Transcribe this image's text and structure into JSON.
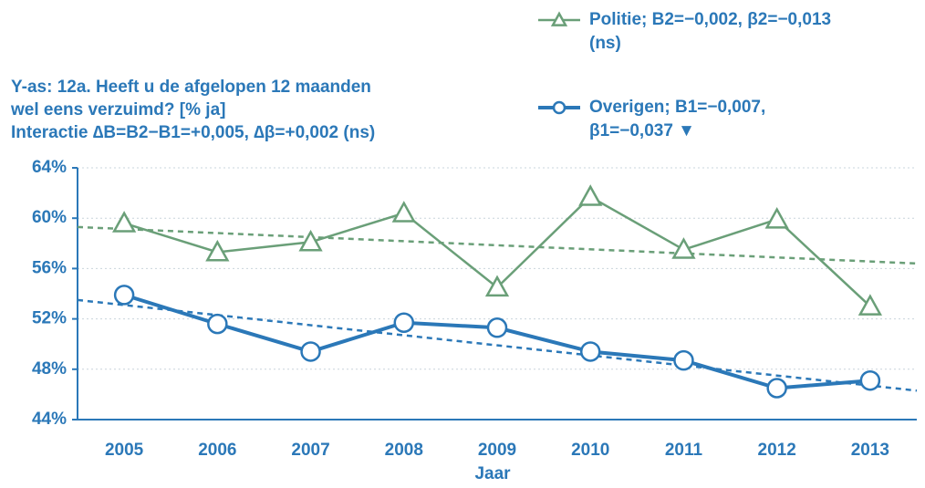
{
  "chart_data": {
    "type": "line",
    "title_lines": [
      "Y-as: 12a. Heeft u de afgelopen 12 maanden",
      "wel eens verzuimd? [% ja]",
      "Interactie ∆B=B2−B1=+0,005, ∆β=+0,002 (ns)"
    ],
    "x_label": "Jaar",
    "categories": [
      "2005",
      "2006",
      "2007",
      "2008",
      "2009",
      "2010",
      "2011",
      "2012",
      "2013"
    ],
    "series": [
      {
        "name": "Politie; B2=−0,002, β2=−0,013",
        "legend_note": "(ns)",
        "color": "#6a9f78",
        "marker": "triangle",
        "values": [
          59.6,
          57.3,
          58.1,
          60.4,
          54.5,
          61.7,
          57.5,
          59.9,
          53.0
        ],
        "trend": [
          59.3,
          56.4
        ]
      },
      {
        "name": "Overigen; B1=−0,007,",
        "legend_note": "β1=−0,037 ▼",
        "color": "#2b78b8",
        "marker": "circle",
        "values": [
          53.9,
          51.6,
          49.4,
          51.7,
          51.3,
          49.4,
          48.7,
          46.5,
          47.1
        ],
        "trend": [
          53.5,
          46.3
        ]
      }
    ],
    "ylim": [
      44,
      64
    ],
    "yticks": [
      {
        "value": 44,
        "label": "44%"
      },
      {
        "value": 48,
        "label": "48%"
      },
      {
        "value": 52,
        "label": "52%"
      },
      {
        "value": 56,
        "label": "56%"
      },
      {
        "value": 60,
        "label": "60%"
      },
      {
        "value": 64,
        "label": "64%"
      }
    ],
    "grid": true
  }
}
